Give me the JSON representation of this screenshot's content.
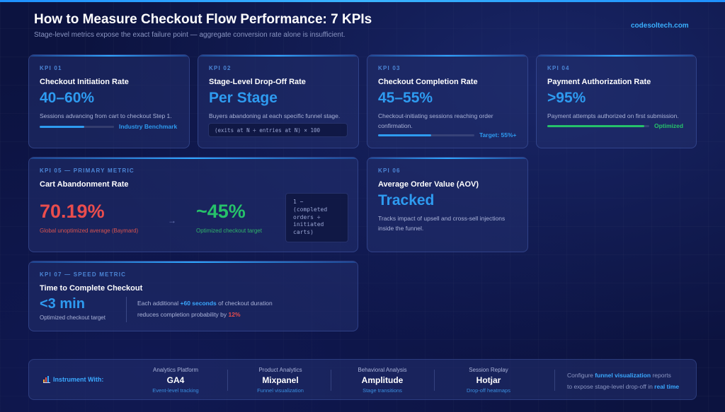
{
  "header": {
    "title": "How to Measure Checkout Flow Performance: 7 KPIs",
    "subtitle": "Stage-level metrics expose the exact failure point — aggregate conversion rate alone is insufficient.",
    "brand": "codesoltech.com"
  },
  "colors": {
    "accent_blue": "#2e9bf0",
    "alert_red": "#ea4d4d",
    "success_green": "#26c26a",
    "background": "#0c1340"
  },
  "kpis": [
    {
      "tag": "KPI 01",
      "title": "Checkout Initiation Rate",
      "value": "40–60%",
      "desc": "Sessions advancing from cart to checkout Step 1.",
      "bar_label": "Industry Benchmark",
      "bar_fill_fraction": 0.6
    },
    {
      "tag": "KPI 02",
      "title": "Stage-Level Drop-Off Rate",
      "value": "Per Stage",
      "desc": "Buyers abandoning at each specific funnel stage.",
      "formula": "(exits at N ÷ entries at N) × 100"
    },
    {
      "tag": "KPI 03",
      "title": "Checkout Completion Rate",
      "value": "45–55%",
      "desc": "Checkout-initiating sessions reaching order confirmation.",
      "bar_label": "Target: 55%+",
      "bar_fill_fraction": 0.55
    },
    {
      "tag": "KPI 04",
      "title": "Payment Authorization Rate",
      "value": ">95%",
      "desc": "Payment attempts authorized on first submission.",
      "bar_label": "Optimized",
      "bar_fill_fraction": 0.95
    }
  ],
  "kpi5": {
    "tag": "KPI 05 — PRIMARY METRIC",
    "title": "Cart Abandonment Rate",
    "current_value": "70.19%",
    "current_caption": "Global unoptimized average (Baymard)",
    "arrow": "→",
    "target_value": "~45%",
    "target_caption": "Optimized checkout target",
    "formula": "1 − (completed orders ÷ initiated carts)"
  },
  "kpi6": {
    "tag": "KPI 06",
    "title": "Average Order Value (AOV)",
    "value": "Tracked",
    "desc": "Tracks impact of upsell and cross-sell injections inside the funnel."
  },
  "kpi7": {
    "tag": "KPI 07 — SPEED METRIC",
    "title": "Time to Complete Checkout",
    "value": "<3 min",
    "caption": "Optimized checkout target",
    "note_prefix": "Each additional ",
    "note_highlight": "+60 seconds",
    "note_middle": " of checkout duration",
    "note_line2_prefix": "reduces completion probability by ",
    "note_line2_highlight": "12%"
  },
  "instrument": {
    "label": "Instrument With:",
    "icon": "bar-chart-icon",
    "tools": [
      {
        "category": "Analytics Platform",
        "name": "GA4",
        "sub": "Event-level tracking"
      },
      {
        "category": "Product Analytics",
        "name": "Mixpanel",
        "sub": "Funnel visualization"
      },
      {
        "category": "Behavioral Analysis",
        "name": "Amplitude",
        "sub": "Stage transitions"
      },
      {
        "category": "Session Replay",
        "name": "Hotjar",
        "sub": "Drop-off heatmaps"
      }
    ],
    "note_prefix": "Configure ",
    "note_highlight": "funnel visualization",
    "note_middle": " reports",
    "note_line2_prefix": "to expose stage-level drop-off in ",
    "note_line2_highlight": "real time"
  }
}
